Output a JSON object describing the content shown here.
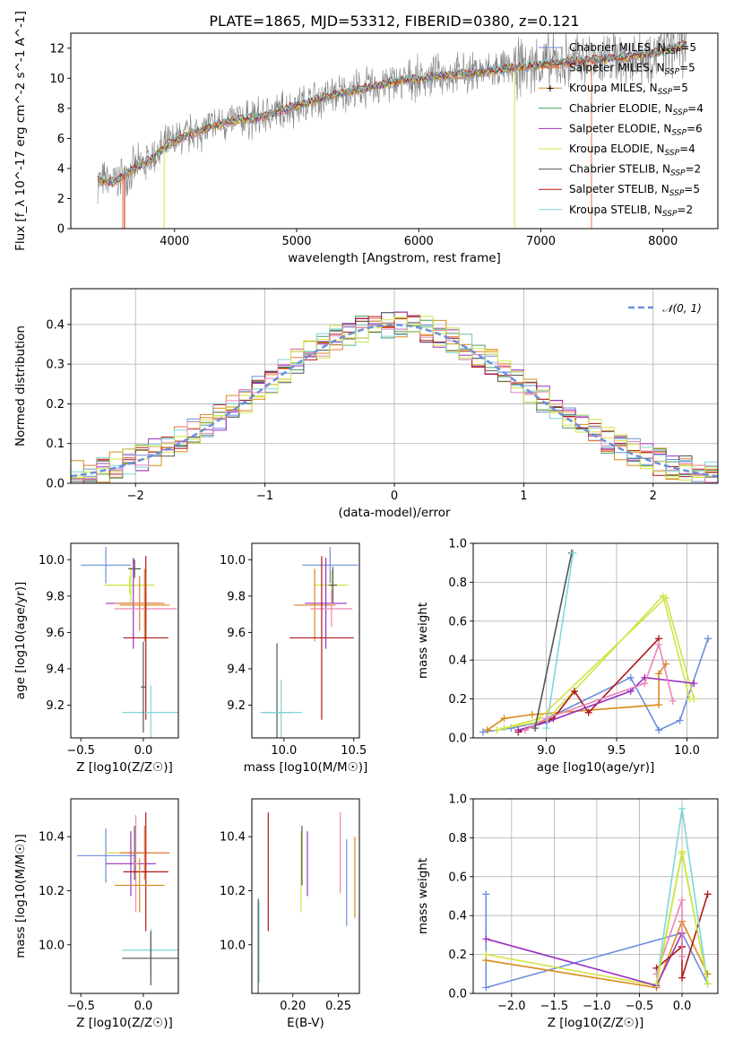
{
  "title": "PLATE=1865, MJD=53312, FIBERID=0380, z=0.121",
  "colors": {
    "Chabrier MILES": "#6b8fdc",
    "Salpeter MILES": "#e8793a",
    "Kroupa MILES": "#d98b1b",
    "Chabrier ELODIE": "#4c9a62",
    "Salpeter ELODIE": "#9b30c1",
    "Kroupa ELODIE": "#d8e046",
    "Chabrier STELIB": "#555555",
    "Salpeter STELIB": "#b01818",
    "Kroupa STELIB": "#7fd6d8",
    "extra1": "#e887b8",
    "extra2": "#c8e84a",
    "data": "#808080"
  },
  "chart_data": [
    {
      "id": "spectrum",
      "type": "line",
      "xlabel": "wavelength [Angstrom, rest frame]",
      "ylabel": "Flux [f_λ 10^-17 erg cm^-2 s^-1 A^-1]",
      "xlim": [
        3150,
        8450
      ],
      "ylim": [
        0,
        13
      ],
      "xticks": [
        4000,
        5000,
        6000,
        7000,
        8000
      ],
      "yticks": [
        0,
        2,
        4,
        6,
        8,
        10,
        12
      ],
      "grid": false,
      "legend_position": "top-right",
      "legend": [
        {
          "label": "Chabrier MILES, N",
          "sub": "SSP",
          "suffix": "=5",
          "color": "Chabrier MILES"
        },
        {
          "label": "Salpeter MILES, N",
          "sub": "SSP",
          "suffix": "=5",
          "color": "Salpeter MILES"
        },
        {
          "label": "Kroupa MILES, N",
          "sub": "SSP",
          "suffix": "=5",
          "color": "Kroupa MILES"
        },
        {
          "label": "Chabrier ELODIE, N",
          "sub": "SSP",
          "suffix": "=4",
          "color": "Chabrier ELODIE"
        },
        {
          "label": "Salpeter ELODIE, N",
          "sub": "SSP",
          "suffix": "=6",
          "color": "Salpeter ELODIE"
        },
        {
          "label": "Kroupa ELODIE, N",
          "sub": "SSP",
          "suffix": "=4",
          "color": "Kroupa ELODIE"
        },
        {
          "label": "Chabrier STELIB, N",
          "sub": "SSP",
          "suffix": "=2",
          "color": "Chabrier STELIB"
        },
        {
          "label": "Salpeter STELIB, N",
          "sub": "SSP",
          "suffix": "=5",
          "color": "Salpeter STELIB"
        },
        {
          "label": "Kroupa STELIB, N",
          "sub": "SSP",
          "suffix": "=2",
          "color": "Kroupa STELIB"
        }
      ],
      "model_trend": {
        "x": [
          3370,
          3500,
          3650,
          3800,
          3950,
          4100,
          4300,
          4500,
          4700,
          5000,
          5300,
          5600,
          5900,
          6200,
          6500,
          6800,
          7100,
          7400,
          7700,
          8000,
          8200
        ],
        "y": [
          3.2,
          3.1,
          3.9,
          4.6,
          5.6,
          6.2,
          6.8,
          7.2,
          7.4,
          8.2,
          8.9,
          9.4,
          9.9,
          10.2,
          10.4,
          10.7,
          11.0,
          11.2,
          11.4,
          11.8,
          12.3
        ]
      }
    },
    {
      "id": "residuals",
      "type": "histogram",
      "xlabel": "(data-model)/error",
      "ylabel": "Normed distribution",
      "xlim": [
        -2.5,
        2.5
      ],
      "ylim": [
        0,
        0.49
      ],
      "xticks": [
        -2,
        -1,
        0,
        1,
        2
      ],
      "yticks": [
        0.0,
        0.1,
        0.2,
        0.3,
        0.4
      ],
      "grid": true,
      "legend_position": "top-right",
      "legend": [
        {
          "label": "𝒩(0, 1)",
          "color": "Chabrier MILES",
          "style": "dashed"
        }
      ]
    },
    {
      "id": "age_vs_Z",
      "type": "errorbar",
      "xlabel": "Z [log10(Z/Z☉)]",
      "ylabel": "age [log10(age/yr)]",
      "xlim": [
        -0.58,
        0.28
      ],
      "ylim": [
        9.02,
        10.09
      ],
      "xticks": [
        -0.5,
        0.0
      ],
      "yticks": [
        9.2,
        9.4,
        9.6,
        9.8,
        10.0
      ],
      "points": [
        {
          "color": "Chabrier MILES",
          "x": -0.3,
          "xerr": 0.2,
          "y": 9.97,
          "yerr": 0.1
        },
        {
          "color": "Kroupa ELODIE",
          "x": -0.11,
          "xerr": 0.2,
          "y": 9.86,
          "yerr": 0.05
        },
        {
          "color": "extra2",
          "x": -0.1,
          "xerr": 0.1,
          "y": 9.86,
          "yerr": 0.1
        },
        {
          "color": "Chabrier STELIB",
          "x": -0.07,
          "xerr": 0.05,
          "y": 9.95,
          "yerr": 0.05
        },
        {
          "color": "Salpeter ELODIE",
          "x": -0.08,
          "xerr": 0.22,
          "y": 9.76,
          "yerr": 0.25
        },
        {
          "color": "Salpeter MILES",
          "x": -0.03,
          "xerr": 0.2,
          "y": 9.76,
          "yerr": 0.15
        },
        {
          "color": "Kroupa MILES",
          "x": 0.01,
          "xerr": 0.2,
          "y": 9.75,
          "yerr": 0.2
        },
        {
          "color": "extra1",
          "x": 0.02,
          "xerr": 0.25,
          "y": 9.73,
          "yerr": 0.1
        },
        {
          "color": "Salpeter STELIB",
          "x": 0.02,
          "xerr": 0.18,
          "y": 9.57,
          "yerr": 0.45
        },
        {
          "color": "Kroupa STELIB",
          "x": 0.06,
          "xerr": 0.23,
          "y": 9.16,
          "yerr": 0.15
        },
        {
          "color": "Chabrier STELIB",
          "x": 0.0,
          "xerr": 0.02,
          "y": 9.3,
          "yerr": 0.25
        }
      ]
    },
    {
      "id": "age_vs_mass",
      "type": "errorbar",
      "xlabel": "mass [log10(M/M☉)]",
      "ylabel": "",
      "xlim": [
        9.77,
        10.54
      ],
      "ylim": [
        9.02,
        10.09
      ],
      "xticks": [
        10.0,
        10.5
      ],
      "yticks": [
        9.2,
        9.4,
        9.6,
        9.8,
        10.0
      ],
      "points": [
        {
          "color": "Chabrier MILES",
          "x": 10.33,
          "xerr": 0.2,
          "y": 9.97,
          "yerr": 0.1
        },
        {
          "color": "Kroupa ELODIE",
          "x": 10.34,
          "xerr": 0.12,
          "y": 9.86,
          "yerr": 0.08
        },
        {
          "color": "Chabrier STELIB",
          "x": 10.35,
          "xerr": 0.03,
          "y": 9.86,
          "yerr": 0.1
        },
        {
          "color": "Kroupa MILES",
          "x": 10.22,
          "xerr": 0.15,
          "y": 9.75,
          "yerr": 0.2
        },
        {
          "color": "Salpeter ELODIE",
          "x": 10.3,
          "xerr": 0.15,
          "y": 9.76,
          "yerr": 0.25
        },
        {
          "color": "extra1",
          "x": 10.34,
          "xerr": 0.15,
          "y": 9.73,
          "yerr": 0.1
        },
        {
          "color": "Salpeter STELIB",
          "x": 10.27,
          "xerr": 0.23,
          "y": 9.57,
          "yerr": 0.45
        },
        {
          "color": "Chabrier STELIB",
          "x": 9.95,
          "xerr": 0.1,
          "y": 9.16,
          "yerr": 0.38
        },
        {
          "color": "Kroupa STELIB",
          "x": 9.98,
          "xerr": 0.15,
          "y": 9.16,
          "yerr": 0.18
        }
      ]
    },
    {
      "id": "weight_vs_age",
      "type": "line",
      "xlabel": "age [log10(age/yr)]",
      "ylabel": "mass weight",
      "xlim": [
        8.48,
        10.22
      ],
      "ylim": [
        0,
        1.0
      ],
      "xticks": [
        9.0,
        9.5,
        10.0
      ],
      "yticks": [
        0.0,
        0.2,
        0.4,
        0.6,
        0.8,
        1.0
      ],
      "grid": true,
      "series": [
        {
          "color": "Chabrier MILES",
          "x": [
            8.55,
            8.75,
            8.95,
            9.6,
            9.8,
            9.95,
            10.15
          ],
          "y": [
            0.03,
            0.05,
            0.08,
            0.31,
            0.04,
            0.09,
            0.51
          ]
        },
        {
          "color": "Kroupa MILES",
          "x": [
            8.58,
            8.7,
            8.9,
            9.8,
            9.8,
            9.85
          ],
          "y": [
            0.04,
            0.1,
            0.12,
            0.17,
            0.33,
            0.38
          ]
        },
        {
          "color": "Kroupa ELODIE",
          "x": [
            8.65,
            8.95,
            9.85,
            10.05
          ],
          "y": [
            0.04,
            0.1,
            0.72,
            0.2
          ]
        },
        {
          "color": "extra2",
          "x": [
            8.7,
            9.0,
            9.83,
            10.02
          ],
          "y": [
            0.05,
            0.09,
            0.73,
            0.2
          ]
        },
        {
          "color": "Salpeter STELIB",
          "x": [
            8.8,
            9.05,
            9.2,
            9.3,
            9.8
          ],
          "y": [
            0.03,
            0.1,
            0.24,
            0.13,
            0.51
          ]
        },
        {
          "color": "Salpeter ELODIE",
          "x": [
            8.8,
            9.0,
            9.6,
            9.7,
            10.05
          ],
          "y": [
            0.04,
            0.08,
            0.24,
            0.31,
            0.28
          ]
        },
        {
          "color": "extra1",
          "x": [
            8.85,
            9.0,
            9.7,
            9.8,
            9.9
          ],
          "y": [
            0.04,
            0.1,
            0.28,
            0.48,
            0.19
          ]
        },
        {
          "color": "Chabrier STELIB",
          "x": [
            8.92,
            9.18
          ],
          "y": [
            0.05,
            0.95
          ]
        },
        {
          "color": "Kroupa STELIB",
          "x": [
            9.0,
            9.19
          ],
          "y": [
            0.05,
            0.95
          ]
        }
      ]
    },
    {
      "id": "mass_vs_Z",
      "type": "errorbar",
      "xlabel": "Z [log10(Z/Z☉)]",
      "ylabel": "mass [log10(M/M☉)]",
      "xlim": [
        -0.58,
        0.28
      ],
      "ylim": [
        9.82,
        10.54
      ],
      "xticks": [
        -0.5,
        0.0
      ],
      "yticks": [
        10.0,
        10.2,
        10.4
      ],
      "points": [
        {
          "color": "Chabrier MILES",
          "x": -0.3,
          "xerr": 0.23,
          "y": 10.33,
          "yerr": 0.1
        },
        {
          "color": "Kroupa ELODIE",
          "x": -0.1,
          "xerr": 0.2,
          "y": 10.34,
          "yerr": 0.05
        },
        {
          "color": "Chabrier STELIB",
          "x": -0.07,
          "xerr": 0.05,
          "y": 10.34,
          "yerr": 0.1
        },
        {
          "color": "Salpeter ELODIE",
          "x": -0.1,
          "xerr": 0.2,
          "y": 10.3,
          "yerr": 0.12
        },
        {
          "color": "extra1",
          "x": -0.06,
          "xerr": 0.02,
          "y": 10.3,
          "yerr": 0.18
        },
        {
          "color": "Salpeter MILES",
          "x": 0.01,
          "xerr": 0.2,
          "y": 10.34,
          "yerr": 0.1
        },
        {
          "color": "Salpeter STELIB",
          "x": 0.02,
          "xerr": 0.18,
          "y": 10.27,
          "yerr": 0.22
        },
        {
          "color": "Kroupa MILES",
          "x": -0.03,
          "xerr": 0.2,
          "y": 10.22,
          "yerr": 0.1
        },
        {
          "color": "Kroupa STELIB",
          "x": 0.06,
          "xerr": 0.23,
          "y": 9.98,
          "yerr": 0.08
        },
        {
          "color": "Chabrier STELIB",
          "x": 0.06,
          "xerr": 0.23,
          "y": 9.95,
          "yerr": 0.1
        }
      ]
    },
    {
      "id": "mass_vs_ebv",
      "type": "errorbar",
      "xlabel": "E(B-V)",
      "ylabel": "",
      "xlim": [
        0.155,
        0.273
      ],
      "ylim": [
        9.82,
        10.54
      ],
      "xticks": [
        0.2,
        0.25
      ],
      "yticks": [
        10.0,
        10.2,
        10.4
      ],
      "points": [
        {
          "color": "Kroupa STELIB",
          "x": 0.163,
          "y": 10.01,
          "yerr": 0.15
        },
        {
          "color": "Chabrier STELIB",
          "x": 0.162,
          "y": 9.99,
          "yerr": 0.18
        },
        {
          "color": "Salpeter STELIB",
          "x": 0.173,
          "y": 10.27,
          "yerr": 0.22
        },
        {
          "color": "Kroupa ELODIE",
          "x": 0.209,
          "y": 10.27,
          "yerr": 0.15
        },
        {
          "color": "Chabrier STELIB",
          "x": 0.21,
          "y": 10.33,
          "yerr": 0.11
        },
        {
          "color": "Salpeter ELODIE",
          "x": 0.216,
          "y": 10.3,
          "yerr": 0.12
        },
        {
          "color": "extra1",
          "x": 0.252,
          "y": 10.34,
          "yerr": 0.15
        },
        {
          "color": "Chabrier MILES",
          "x": 0.259,
          "y": 10.23,
          "yerr": 0.16
        },
        {
          "color": "Kroupa MILES",
          "x": 0.268,
          "y": 10.25,
          "yerr": 0.15
        }
      ]
    },
    {
      "id": "weight_vs_Z",
      "type": "line",
      "xlabel": "Z [log10(Z/Z☉)]",
      "ylabel": "mass weight",
      "xlim": [
        -2.45,
        0.42
      ],
      "ylim": [
        0,
        1.0
      ],
      "xticks": [
        -2.0,
        -1.5,
        -1.0,
        -0.5,
        0.0
      ],
      "yticks": [
        0.0,
        0.2,
        0.4,
        0.6,
        0.8,
        1.0
      ],
      "grid": true,
      "series": [
        {
          "color": "Chabrier MILES",
          "x": [
            -2.3,
            -2.3,
            0.0,
            0.3
          ],
          "y": [
            0.51,
            0.03,
            0.31,
            0.05
          ]
        },
        {
          "color": "Kroupa MILES",
          "x": [
            -2.3,
            -0.3,
            0.0,
            0.3
          ],
          "y": [
            0.17,
            0.03,
            0.37,
            0.1
          ]
        },
        {
          "color": "Kroupa ELODIE",
          "x": [
            -2.3,
            -0.3,
            0.0,
            0.3
          ],
          "y": [
            0.2,
            0.04,
            0.72,
            0.05
          ]
        },
        {
          "color": "Salpeter ELODIE",
          "x": [
            -2.3,
            -0.3,
            0.0,
            0.0
          ],
          "y": [
            0.28,
            0.04,
            0.31,
            0.24
          ]
        },
        {
          "color": "Salpeter STELIB",
          "x": [
            -0.3,
            0.0,
            0.0,
            0.3
          ],
          "y": [
            0.13,
            0.24,
            0.08,
            0.51
          ]
        },
        {
          "color": "extra1",
          "x": [
            -0.3,
            0.0,
            0.0
          ],
          "y": [
            0.1,
            0.48,
            0.19
          ]
        },
        {
          "color": "Kroupa STELIB",
          "x": [
            -0.3,
            0.0,
            0.3
          ],
          "y": [
            0.05,
            0.95,
            0.05
          ]
        },
        {
          "color": "extra2",
          "x": [
            -0.3,
            0.0,
            0.3
          ],
          "y": [
            0.05,
            0.73,
            0.05
          ]
        }
      ]
    }
  ]
}
